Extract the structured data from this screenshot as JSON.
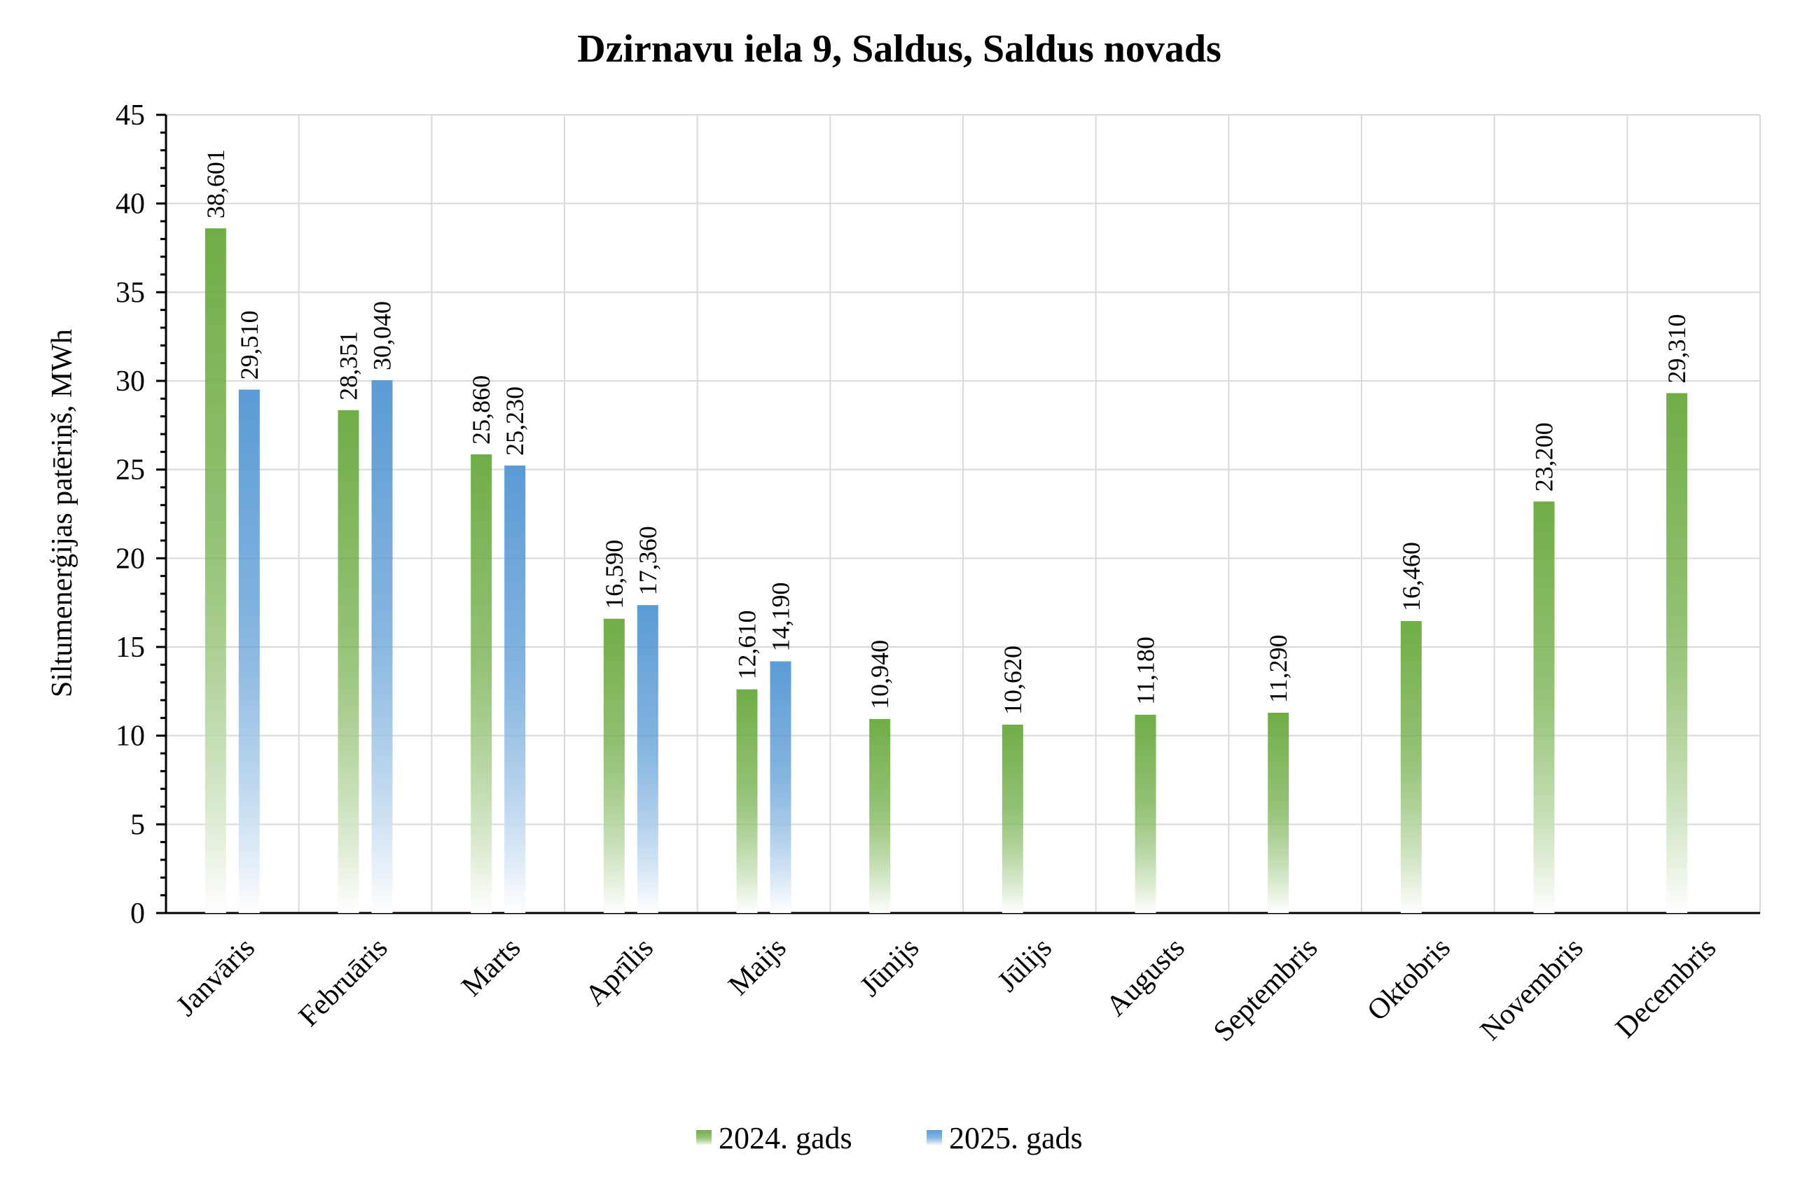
{
  "chart_data": {
    "type": "bar",
    "title": "Dzirnavu iela 9, Saldus, Saldus novads",
    "xlabel": "",
    "ylabel": "Siltumenerģijas patēriņš, MWh",
    "ylim": [
      0,
      45
    ],
    "yticks": [
      "0",
      "5",
      "10",
      "15",
      "20",
      "25",
      "30",
      "35",
      "40",
      "45"
    ],
    "ytick_values": [
      0,
      5,
      10,
      15,
      20,
      25,
      30,
      35,
      40,
      45
    ],
    "minor_tick_step": 1,
    "grid": true,
    "legend_position": "bottom",
    "categories": [
      "Janvāris",
      "Februāris",
      "Marts",
      "Aprīlis",
      "Maijs",
      "Jūnijs",
      "Jūlijs",
      "Augusts",
      "Septembris",
      "Oktobris",
      "Novembris",
      "Decembris"
    ],
    "series": [
      {
        "name": "2024. gads",
        "color": "#70ad47",
        "color_light": "#ffffff",
        "values": [
          38.601,
          28.351,
          25.86,
          16.59,
          12.61,
          10.94,
          10.62,
          11.18,
          11.29,
          16.46,
          23.2,
          29.31
        ],
        "labels": [
          "38,601",
          "28,351",
          "25,860",
          "16,590",
          "12,610",
          "10,940",
          "10,620",
          "11,180",
          "11,290",
          "16,460",
          "23,200",
          "29,310"
        ]
      },
      {
        "name": "2025. gads",
        "color": "#5b9bd5",
        "color_light": "#ffffff",
        "values": [
          29.51,
          30.04,
          25.23,
          17.36,
          14.19,
          null,
          null,
          null,
          null,
          null,
          null,
          null
        ],
        "labels": [
          "29,510",
          "30,040",
          "25,230",
          "17,360",
          "14,190",
          "",
          "",
          "",
          "",
          "",
          "",
          ""
        ]
      }
    ]
  }
}
